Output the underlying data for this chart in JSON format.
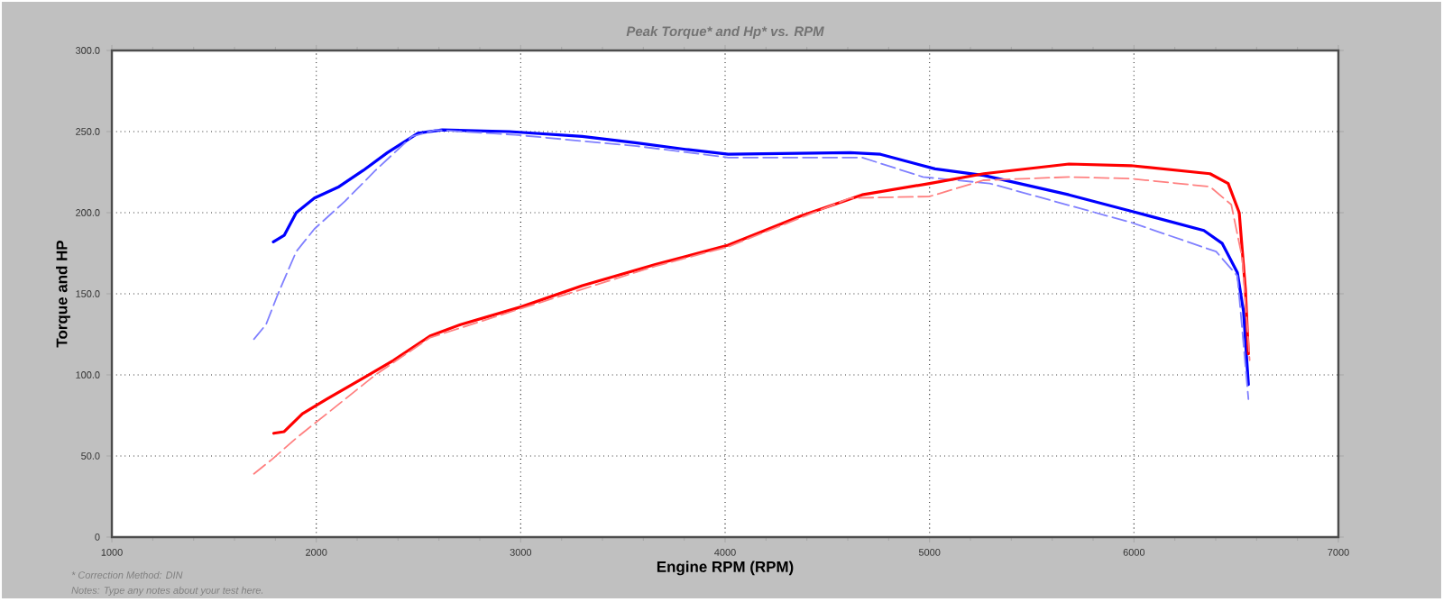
{
  "chart_data": {
    "type": "line",
    "title": "Peak Torque* and Hp* vs. RPM",
    "xlabel": "Engine RPM (RPM)",
    "ylabel": "Torque and HP",
    "annotations": [
      "* Correction Method: DIN",
      "Notes: Type any notes about your test here."
    ],
    "xlim": [
      1000,
      7000
    ],
    "ylim": [
      0,
      300
    ],
    "xticks": [
      1000,
      2000,
      3000,
      4000,
      5000,
      6000,
      7000
    ],
    "yticks": [
      {
        "value": 0,
        "label": "0"
      },
      {
        "value": 50,
        "label": "50.0"
      },
      {
        "value": 100,
        "label": "100.0"
      },
      {
        "value": 150,
        "label": "150.0"
      },
      {
        "value": 200,
        "label": "200.0"
      },
      {
        "value": 250,
        "label": "250.0"
      },
      {
        "value": 300,
        "label": "300.0"
      }
    ],
    "grid": true,
    "series": [
      {
        "color": "#0000ff",
        "line_style": "solid",
        "x": [
          1790,
          1843,
          1902,
          1991,
          2111,
          2229,
          2348,
          2497,
          2616,
          2944,
          3301,
          3569,
          3807,
          4015,
          4611,
          4760,
          5027,
          5265,
          5682,
          5985,
          6342,
          6432,
          6506,
          6536,
          6560
        ],
        "values": [
          182,
          186,
          200,
          209,
          216,
          226,
          237,
          249,
          251,
          250,
          247,
          243,
          239,
          236,
          237,
          236,
          227,
          223,
          211,
          201,
          189,
          181,
          163,
          139,
          94
        ]
      },
      {
        "color": "#8080ff",
        "line_style": "dashed",
        "x": [
          1695,
          1754,
          1813,
          1902,
          1991,
          2140,
          2289,
          2468,
          2586,
          2973,
          3569,
          4015,
          4670,
          4968,
          5295,
          5985,
          6402,
          6506,
          6560
        ],
        "values": [
          122,
          131,
          150,
          176,
          190,
          207,
          226,
          247,
          251,
          248,
          241,
          234,
          234,
          222,
          218,
          194,
          176,
          161,
          85
        ]
      },
      {
        "color": "#ff0000",
        "line_style": "solid",
        "x": [
          1792,
          1843,
          1932,
          2051,
          2229,
          2378,
          2557,
          2705,
          3004,
          3301,
          3658,
          4015,
          4372,
          4670,
          5000,
          5265,
          5682,
          5985,
          6372,
          6461,
          6515,
          6545,
          6560
        ],
        "values": [
          64,
          65,
          76,
          85,
          98,
          109,
          124,
          131,
          142,
          155,
          168,
          180,
          198,
          211,
          218,
          224,
          230,
          229,
          224,
          218,
          200,
          153,
          113
        ]
      },
      {
        "color": "#ff8080",
        "line_style": "dashed",
        "x": [
          1695,
          1784,
          1902,
          2051,
          2289,
          2557,
          3004,
          3658,
          4015,
          4611,
          5000,
          5265,
          5682,
          5985,
          6372,
          6476,
          6530,
          6566
        ],
        "values": [
          39,
          48,
          61,
          76,
          100,
          123,
          141,
          167,
          179,
          209,
          210,
          220,
          222,
          221,
          216,
          205,
          172,
          109
        ]
      }
    ]
  }
}
